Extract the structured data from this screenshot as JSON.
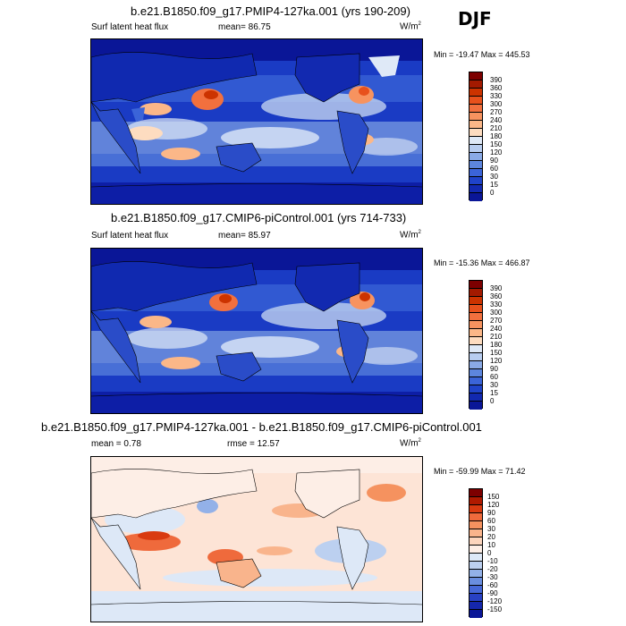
{
  "season": "DJF",
  "panels": [
    {
      "title": "b.e21.B1850.f09_g17.PMIP4-127ka.001 (yrs 190-209)",
      "left_label": "Surf latent heat flux",
      "mean_label": "mean=  86.75",
      "units": "W/m",
      "units_sup": "2",
      "minmax": "Min = -19.47 Max = 445.53",
      "colorbar_labels": [
        "390",
        "360",
        "330",
        "300",
        "270",
        "240",
        "210",
        "180",
        "150",
        "120",
        "90",
        "60",
        "30",
        "15",
        "0"
      ],
      "colorbar_colors": [
        "#7d0000",
        "#a31a00",
        "#cc3300",
        "#e8511c",
        "#f2703e",
        "#f7935f",
        "#fbb788",
        "#fddcc0",
        "#dfe9f7",
        "#b8cdf0",
        "#8aaae6",
        "#5d86de",
        "#3b64d8",
        "#1f43c9",
        "#1229b0",
        "#0a1697"
      ]
    },
    {
      "title": "b.e21.B1850.f09_g17.CMIP6-piControl.001 (yrs 714-733)",
      "left_label": "Surf latent heat flux",
      "mean_label": "mean=  85.97",
      "units": "W/m",
      "units_sup": "2",
      "minmax": "Min = -15.36 Max = 466.87",
      "colorbar_labels": [
        "390",
        "360",
        "330",
        "300",
        "270",
        "240",
        "210",
        "180",
        "150",
        "120",
        "90",
        "60",
        "30",
        "15",
        "0"
      ],
      "colorbar_colors": [
        "#7d0000",
        "#a31a00",
        "#cc3300",
        "#e8511c",
        "#f2703e",
        "#f7935f",
        "#fbb788",
        "#fddcc0",
        "#dfe9f7",
        "#b8cdf0",
        "#8aaae6",
        "#5d86de",
        "#3b64d8",
        "#1f43c9",
        "#1229b0",
        "#0a1697"
      ]
    },
    {
      "title": "b.e21.B1850.f09_g17.PMIP4-127ka.001 - b.e21.B1850.f09_g17.CMIP6-piControl.001",
      "left_label": "mean =   0.78",
      "mean_label": "rmse =  12.57",
      "units": "W/m",
      "units_sup": "2",
      "minmax": "Min = -59.99 Max =  71.42",
      "colorbar_labels": [
        "150",
        "120",
        "90",
        "60",
        "30",
        "20",
        "10",
        "0",
        "-10",
        "-20",
        "-30",
        "-60",
        "-90",
        "-120",
        "-150"
      ],
      "colorbar_colors": [
        "#7d0000",
        "#b01a00",
        "#d93a10",
        "#ef6a3c",
        "#f5925f",
        "#f9b48c",
        "#fcd5bd",
        "#fdeee6",
        "#dde8f7",
        "#bcd0f0",
        "#93b1e8",
        "#6a8ee0",
        "#4668d8",
        "#2841c4",
        "#1527ac",
        "#0a1697"
      ]
    }
  ]
}
